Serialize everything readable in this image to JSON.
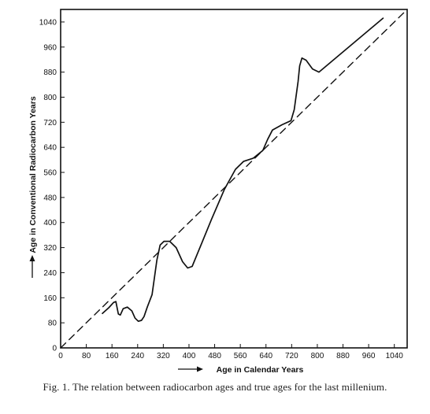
{
  "chart_data": {
    "type": "line",
    "title": "",
    "xlabel": "Age in Calendar Years",
    "ylabel": "Age in Conventional Radiocarbon Years",
    "xlim": [
      0,
      1080
    ],
    "ylim": [
      0,
      1080
    ],
    "x_ticks": [
      0,
      80,
      160,
      240,
      320,
      400,
      480,
      560,
      640,
      720,
      800,
      880,
      960,
      1040
    ],
    "y_ticks": [
      0,
      80,
      160,
      240,
      320,
      400,
      480,
      560,
      640,
      720,
      800,
      880,
      960,
      1040
    ],
    "grid": false,
    "series": [
      {
        "style": "solid",
        "x": [
          130,
          150,
          165,
          172,
          180,
          186,
          195,
          208,
          222,
          232,
          242,
          252,
          260,
          270,
          285,
          300,
          310,
          322,
          340,
          360,
          380,
          396,
          410,
          430,
          470,
          510,
          545,
          570,
          600,
          630,
          645,
          660,
          690,
          718,
          728,
          740,
          745,
          752,
          765,
          785,
          805,
          1005
        ],
        "y": [
          110,
          128,
          145,
          148,
          108,
          105,
          125,
          130,
          118,
          95,
          85,
          88,
          100,
          130,
          170,
          280,
          328,
          340,
          340,
          320,
          275,
          255,
          260,
          310,
          410,
          505,
          570,
          595,
          605,
          630,
          665,
          695,
          712,
          725,
          760,
          850,
          900,
          925,
          918,
          890,
          880,
          1052
        ]
      },
      {
        "style": "dashed",
        "x": [
          0,
          1080
        ],
        "y": [
          0,
          1080
        ]
      }
    ]
  },
  "caption": "Fig. 1. The relation between radiocarbon ages and true ages for the last millenium."
}
